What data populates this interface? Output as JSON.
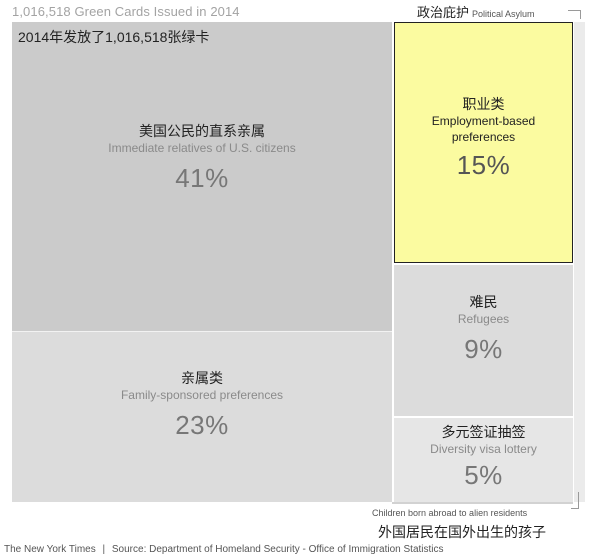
{
  "chart_data": {
    "type": "treemap",
    "title": "1,016,518 Green Cards Issued in 2014",
    "title_zh": "2014年发放了1,016,518张绿卡",
    "total": 1016518,
    "series": [
      {
        "name_zh": "美国公民的直系亲属",
        "name": "Immediate relatives of U.S. citizens",
        "percent": 41,
        "label": "41%"
      },
      {
        "name_zh": "亲属类",
        "name": "Family-sponsored preferences",
        "percent": 23,
        "label": "23%"
      },
      {
        "name_zh": "职业类",
        "name": "Employment-based preferences",
        "percent": 15,
        "label": "15%",
        "highlight_color": "#fbfba0"
      },
      {
        "name_zh": "难民",
        "name": "Refugees",
        "percent": 9,
        "label": "9%"
      },
      {
        "name_zh": "多元签证抽签",
        "name": "Diversity visa lottery",
        "percent": 5,
        "label": "5%"
      },
      {
        "name_zh": "政治庇护",
        "name": "Political Asylum"
      },
      {
        "name_zh": "外国居民在国外出生的孩子",
        "name": "Children born abroad to alien residents"
      }
    ]
  },
  "footer": {
    "credit": "The New York Times",
    "separator": "|",
    "source": "Source: Department of Homeland Security - Office of Immigration Statistics"
  }
}
